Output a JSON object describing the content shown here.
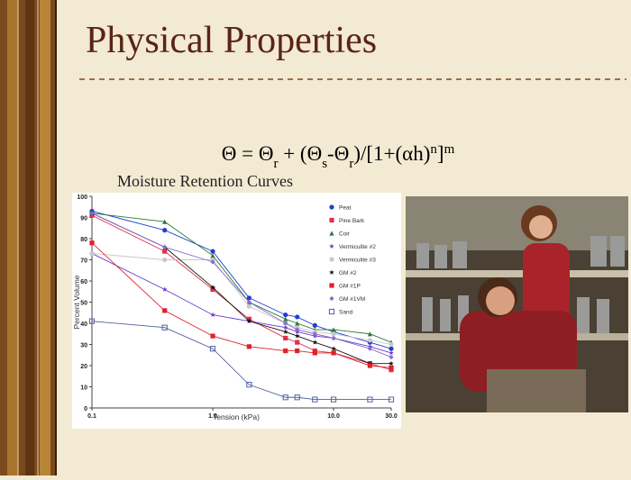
{
  "slide": {
    "title": "Physical Properties",
    "equation": [
      {
        "text": "Θ = Θ"
      },
      {
        "sub": "r"
      },
      {
        "text": " + (Θ"
      },
      {
        "sub": "s"
      },
      {
        "text": "-Θ"
      },
      {
        "sub": "r"
      },
      {
        "text": ")/[1+(αh)"
      },
      {
        "sup": "n"
      },
      {
        "text": "]"
      },
      {
        "sup": "m"
      }
    ]
  },
  "chart_data": {
    "type": "line",
    "title": "Moisture Retention Curves",
    "x_label": "Tension (kPa)",
    "y_label": "Percent Volume",
    "x_log": true,
    "x": [
      0.1,
      0.4,
      1.0,
      2.0,
      4.0,
      5.0,
      7.0,
      10.0,
      20.0,
      30.0
    ],
    "xlim": [
      0.1,
      30
    ],
    "xticks": [
      {
        "value": 0.1,
        "label": "0.1"
      },
      {
        "value": 1,
        "label": "1.0"
      },
      {
        "value": 10,
        "label": "10.0"
      },
      {
        "value": 30,
        "label": "30.0"
      }
    ],
    "ylim": [
      0,
      100
    ],
    "yticks": [
      0,
      10,
      20,
      30,
      40,
      50,
      60,
      70,
      80,
      90,
      100
    ],
    "series": [
      {
        "name": "Peat",
        "color": "#1f3fd0",
        "marker": "circle",
        "values": [
          93,
          84,
          74,
          52,
          44,
          43,
          39,
          36,
          31,
          28
        ]
      },
      {
        "name": "Pine Bark",
        "color": "#e0304a",
        "marker": "square",
        "values": [
          91,
          74,
          56,
          42,
          33,
          31,
          27,
          26,
          21,
          18
        ]
      },
      {
        "name": "Coir",
        "color": "#2a7a3a",
        "marker": "triangle",
        "values": [
          92,
          88,
          72,
          50,
          42,
          40,
          37,
          37,
          35,
          31
        ]
      },
      {
        "name": "Vermiculite #2",
        "color": "#6a3ad0",
        "marker": "star",
        "values": [
          73,
          56,
          44,
          41,
          38,
          36,
          34,
          33,
          29,
          26
        ]
      },
      {
        "name": "Vermiculite #3",
        "color": "#c8c8c8",
        "marker": "circle",
        "values": [
          73,
          70,
          70,
          48,
          40,
          38,
          36,
          35,
          32,
          30
        ]
      },
      {
        "name": "GM #2",
        "color": "#111111",
        "marker": "star",
        "values": [
          92,
          76,
          57,
          41,
          36,
          34,
          31,
          28,
          21,
          21
        ]
      },
      {
        "name": "GM #1P",
        "color": "#e0202a",
        "marker": "square",
        "values": [
          78,
          46,
          34,
          29,
          27,
          27,
          26,
          26,
          20,
          19
        ]
      },
      {
        "name": "GM #1VM",
        "color": "#8a6ad0",
        "marker": "diamond",
        "values": [
          92,
          76,
          69,
          50,
          40,
          37,
          35,
          33,
          28,
          24
        ]
      },
      {
        "name": "Sand",
        "color": "#5060a0",
        "marker": "open-square",
        "values": [
          41,
          38,
          28,
          11,
          5,
          5,
          4,
          4,
          4,
          4
        ]
      }
    ]
  }
}
